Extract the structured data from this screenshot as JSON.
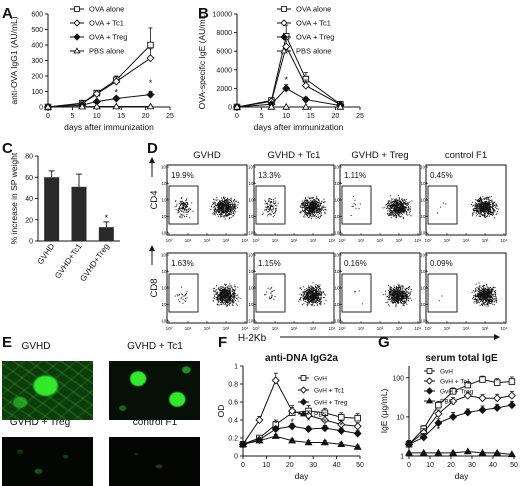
{
  "panel_letters": [
    "A",
    "B",
    "C",
    "D",
    "E",
    "F",
    "G"
  ],
  "panel_D": {
    "columns": [
      "GVHD",
      "GVHD + Tc1",
      "GVHD + Treg",
      "control F1"
    ],
    "row_labels": [
      "CD4",
      "CD8"
    ],
    "xlabel": "H-2Kb",
    "percent_cd4": [
      "19.9%",
      "13.3%",
      "1.11%",
      "0.45%"
    ],
    "percent_cd8": [
      "1.63%",
      "1.15%",
      "0.16%",
      "0.09%"
    ],
    "tick_labels": [
      "10⁰",
      "10¹",
      "10²",
      "10³",
      "10⁴"
    ]
  },
  "panel_E": {
    "titles": [
      "GVHD",
      "GVHD + Tc1",
      "GVHD + Treg",
      "control F1"
    ],
    "micro_color": "#31e82b"
  },
  "colors": {
    "ink": "#111111",
    "bar": "#2a2a2a",
    "green": "#31e82b"
  },
  "chart_data": [
    {
      "panel": "A",
      "type": "line",
      "xlabel": "days after immunization",
      "ylabel": "anti-OVA IgG1 (AU/mL)",
      "xlim": [
        0,
        25
      ],
      "ylim": [
        0,
        600
      ],
      "xticks": [
        0,
        5,
        10,
        15,
        20,
        25
      ],
      "yticks": [
        0,
        100,
        200,
        300,
        400,
        500,
        600
      ],
      "annotations": [
        "*",
        "*"
      ],
      "series": [
        {
          "name": "OVA alone",
          "marker": "square-open",
          "x": [
            0,
            7,
            10,
            14,
            21
          ],
          "y": [
            0,
            25,
            90,
            175,
            400
          ],
          "err": [
            0,
            6,
            15,
            25,
            110
          ]
        },
        {
          "name": "OVA + Tc1",
          "marker": "diamond-open",
          "x": [
            0,
            7,
            10,
            14,
            21
          ],
          "y": [
            0,
            22,
            85,
            165,
            315
          ],
          "err": [
            0,
            6,
            15,
            30,
            60
          ]
        },
        {
          "name": "OVA + Treg",
          "marker": "diamond-filled",
          "x": [
            0,
            7,
            10,
            14,
            21
          ],
          "y": [
            0,
            12,
            35,
            55,
            80
          ],
          "err": [
            0,
            4,
            8,
            12,
            20
          ]
        },
        {
          "name": "PBS alone",
          "marker": "triangle-open",
          "x": [
            0,
            7,
            10,
            14,
            21
          ],
          "y": [
            0,
            2,
            3,
            3,
            3
          ],
          "err": [
            0,
            0,
            0,
            0,
            0
          ]
        }
      ]
    },
    {
      "panel": "B",
      "type": "line",
      "xlabel": "days after immunization",
      "ylabel": "OVA-specific IgE (AU/mL)",
      "xlim": [
        0,
        25
      ],
      "ylim": [
        0,
        10000
      ],
      "xticks": [
        0,
        5,
        10,
        15,
        20,
        25
      ],
      "yticks": [
        0,
        2000,
        4000,
        6000,
        8000,
        10000
      ],
      "annotations": [
        "*"
      ],
      "series": [
        {
          "name": "OVA alone",
          "marker": "square-open",
          "x": [
            0,
            7,
            10,
            14,
            21
          ],
          "y": [
            0,
            700,
            7600,
            3000,
            300
          ],
          "err": [
            0,
            150,
            1200,
            700,
            100
          ]
        },
        {
          "name": "OVA + Tc1",
          "marker": "diamond-open",
          "x": [
            0,
            7,
            10,
            14,
            21
          ],
          "y": [
            0,
            600,
            6500,
            2300,
            250
          ],
          "err": [
            0,
            150,
            1000,
            600,
            100
          ]
        },
        {
          "name": "OVA + Treg",
          "marker": "diamond-filled",
          "x": [
            0,
            7,
            10,
            14,
            21
          ],
          "y": [
            0,
            300,
            2000,
            800,
            150
          ],
          "err": [
            0,
            80,
            400,
            250,
            60
          ]
        },
        {
          "name": "PBS alone",
          "marker": "triangle-open",
          "x": [
            0,
            7,
            10,
            14,
            21
          ],
          "y": [
            0,
            0,
            0,
            0,
            0
          ],
          "err": [
            0,
            0,
            0,
            0,
            0
          ]
        }
      ]
    },
    {
      "panel": "C",
      "type": "bar",
      "ylabel": "% increase in SP weight",
      "categories": [
        "GVHD",
        "GVHD+Tc1",
        "GVHD+Treg"
      ],
      "values": [
        60,
        51,
        13
      ],
      "errors": [
        6,
        12,
        5
      ],
      "ylim": [
        0,
        80
      ],
      "yticks": [
        0,
        20,
        40,
        60,
        80
      ],
      "annotations": [
        "*"
      ]
    },
    {
      "panel": "F",
      "type": "line",
      "title": "anti-DNA IgG2a",
      "xlabel": "day",
      "ylabel": "OD",
      "xlim": [
        0,
        50
      ],
      "ylim": [
        0,
        1.0
      ],
      "xticks": [
        0,
        10,
        20,
        30,
        40,
        50
      ],
      "yticks": [
        0,
        0.2,
        0.4,
        0.6,
        0.8,
        1.0
      ],
      "annotations": [
        "*",
        "*",
        "*",
        "*",
        "*"
      ],
      "series": [
        {
          "name": "GvH",
          "marker": "square-open",
          "x": [
            0,
            7,
            14,
            21,
            28,
            35,
            42,
            49
          ],
          "y": [
            0.13,
            0.2,
            0.35,
            0.48,
            0.5,
            0.48,
            0.43,
            0.42
          ],
          "err": [
            0.02,
            0.02,
            0.05,
            0.06,
            0.06,
            0.05,
            0.05,
            0.05
          ]
        },
        {
          "name": "GvH + Tc1",
          "marker": "diamond-open",
          "x": [
            0,
            7,
            14,
            21,
            28,
            35,
            42,
            49
          ],
          "y": [
            0.13,
            0.4,
            0.84,
            0.5,
            0.45,
            0.4,
            0.35,
            0.33
          ],
          "err": [
            0.02,
            0.04,
            0.08,
            0.06,
            0.05,
            0.05,
            0.04,
            0.04
          ]
        },
        {
          "name": "GvH + Treg",
          "marker": "diamond-filled",
          "x": [
            0,
            7,
            14,
            21,
            28,
            35,
            42,
            49
          ],
          "y": [
            0.13,
            0.18,
            0.3,
            0.33,
            0.3,
            0.31,
            0.28,
            0.25
          ],
          "err": [
            0.02,
            0.02,
            0.03,
            0.03,
            0.03,
            0.03,
            0.03,
            0.03
          ]
        },
        {
          "name": "PBS",
          "marker": "triangle-filled",
          "x": [
            0,
            7,
            14,
            21,
            28,
            35,
            42,
            49
          ],
          "y": [
            0.13,
            0.17,
            0.22,
            0.17,
            0.15,
            0.15,
            0.13,
            0.1
          ],
          "err": [
            0.01,
            0.01,
            0.02,
            0.02,
            0.02,
            0.02,
            0.02,
            0.02
          ]
        }
      ]
    },
    {
      "panel": "G",
      "type": "line",
      "title": "serum total IgE",
      "xlabel": "day",
      "ylabel": "IgE (μg/mL)",
      "yscale": "log",
      "xlim": [
        0,
        50
      ],
      "ylim": [
        1,
        200
      ],
      "xticks": [
        0,
        10,
        20,
        30,
        40,
        50
      ],
      "yticks": [
        1,
        10,
        100
      ],
      "annotations": [
        "*",
        "*",
        "*"
      ],
      "series": [
        {
          "name": "GvH",
          "marker": "square-open",
          "x": [
            0,
            7,
            14,
            21,
            28,
            35,
            42,
            49
          ],
          "y": [
            2,
            5,
            20,
            45,
            65,
            90,
            75,
            80
          ],
          "err": [
            0.5,
            1,
            5,
            10,
            15,
            20,
            20,
            25
          ]
        },
        {
          "name": "GvH + Tc1",
          "marker": "diamond-open",
          "x": [
            0,
            7,
            14,
            21,
            28,
            35,
            42,
            49
          ],
          "y": [
            2,
            4,
            12,
            25,
            35,
            30,
            30,
            35
          ],
          "err": [
            0.5,
            1,
            3,
            6,
            8,
            7,
            8,
            10
          ]
        },
        {
          "name": "GvH + Treg",
          "marker": "diamond-filled",
          "x": [
            0,
            7,
            14,
            21,
            28,
            35,
            42,
            49
          ],
          "y": [
            2,
            3,
            7,
            10,
            13,
            15,
            17,
            20
          ],
          "err": [
            0.5,
            0.8,
            2,
            3,
            3,
            4,
            4,
            5
          ]
        },
        {
          "name": "PBS",
          "marker": "triangle-filled",
          "x": [
            0,
            7,
            14,
            21,
            28,
            35,
            42,
            49
          ],
          "y": [
            1.2,
            1.2,
            1.2,
            1.2,
            1.3,
            1.2,
            1.2,
            1.1
          ],
          "err": [
            0,
            0,
            0,
            0,
            0,
            0,
            0,
            0
          ]
        }
      ]
    }
  ]
}
